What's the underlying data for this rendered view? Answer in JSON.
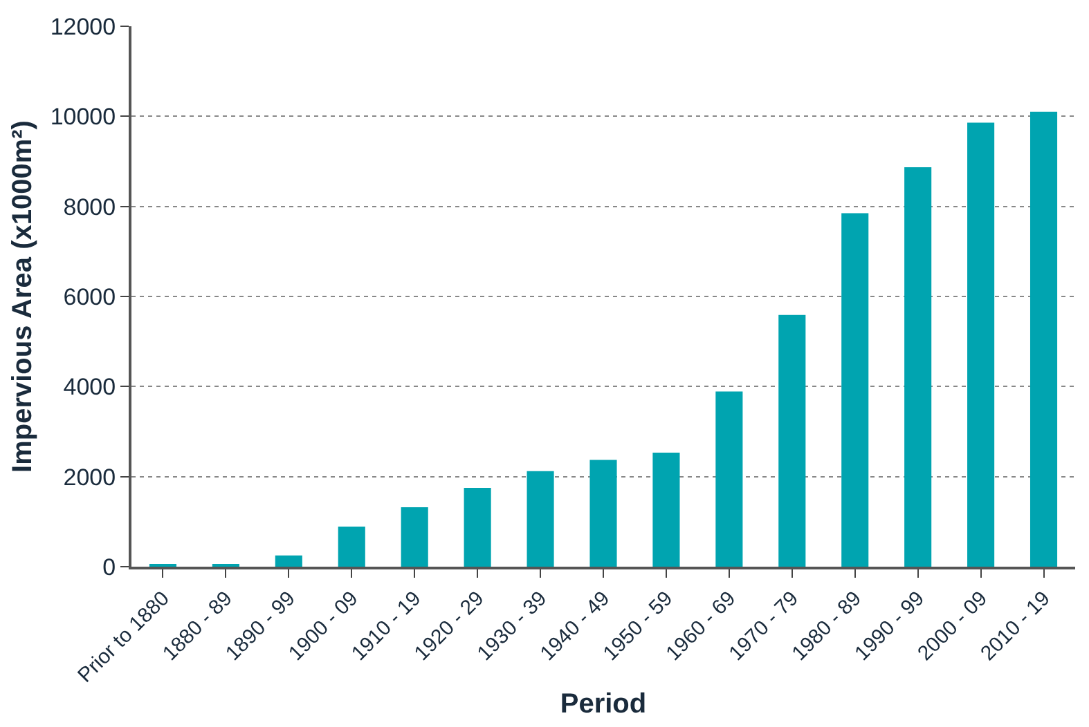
{
  "chart_data": {
    "type": "bar",
    "xlabel": "Period",
    "ylabel": "Impervious Area (x1000m²)",
    "categories": [
      "Prior to 1880",
      "1880 - 89",
      "1890 - 99",
      "1900 - 09",
      "1910 - 19",
      "1920 - 29",
      "1930 - 39",
      "1940 - 49",
      "1950 - 59",
      "1960 - 69",
      "1970 - 79",
      "1980 - 89",
      "1990 - 99",
      "2000 - 09",
      "2010 - 19"
    ],
    "values": [
      50,
      50,
      250,
      890,
      1320,
      1750,
      2120,
      2370,
      2530,
      3890,
      5590,
      7850,
      8870,
      9860,
      10100
    ],
    "color": "#00a4b0",
    "ylim": [
      0,
      12000
    ],
    "yticks": [
      0,
      2000,
      4000,
      6000,
      8000,
      10000,
      12000
    ],
    "grid": "y",
    "legend": false
  }
}
